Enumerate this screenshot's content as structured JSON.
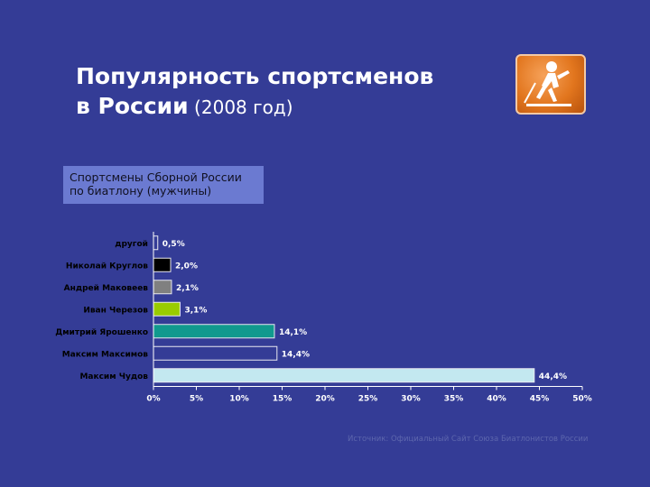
{
  "header": {
    "title_line1": "Популярность спортсменов",
    "title_line2": "в России",
    "title_year": " (2008 год)"
  },
  "logo": {
    "icon": "biathlon-skier-icon",
    "color": "#e2761e"
  },
  "subtitle": {
    "line1": "Спортсмены Сборной России",
    "line2": "по биатлону (мужчины)"
  },
  "source": "Источник: Официальный Сайт Союза Биатлонистов России",
  "chart_data": {
    "type": "bar",
    "orientation": "horizontal",
    "categories": [
      "другой",
      "Николай Круглов",
      "Андрей Маковеев",
      "Иван Черезов",
      "Дмитрий Ярошенко",
      "Максим Максимов",
      "Максим Чудов"
    ],
    "values": [
      0.5,
      2.0,
      2.1,
      3.1,
      14.1,
      14.4,
      44.4
    ],
    "data_labels": [
      "0,5%",
      "2,0%",
      "2,1%",
      "3,1%",
      "14,1%",
      "14,4%",
      "44,4%"
    ],
    "colors": [
      "#343c96",
      "#000000",
      "#808080",
      "#99cc00",
      "#11998e",
      "#343c96",
      "#c3e8f0"
    ],
    "xlim": [
      0,
      50
    ],
    "xticks": [
      "0%",
      "5%",
      "10%",
      "15%",
      "20%",
      "25%",
      "30%",
      "35%",
      "40%",
      "45%",
      "50%"
    ],
    "grid": false
  }
}
